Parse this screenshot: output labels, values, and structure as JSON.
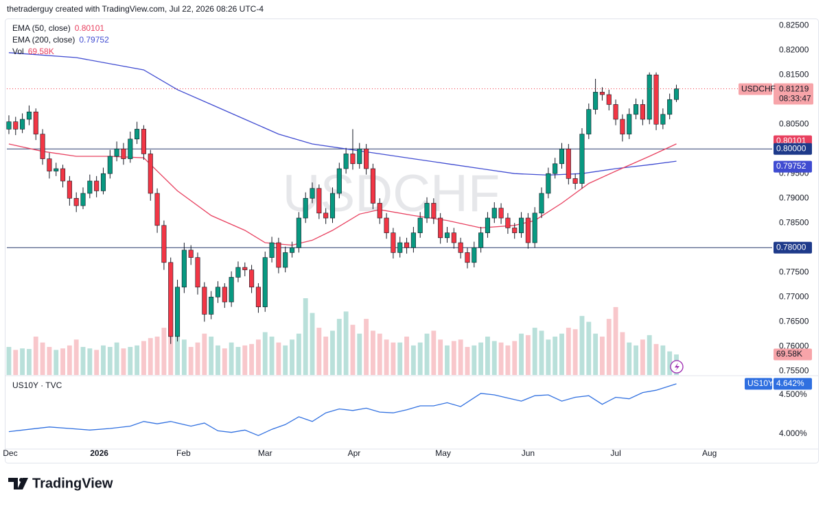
{
  "header": "thetraderguy created with TradingView.com, Jul 22, 2026 08:26 UTC-4",
  "footer": "TradingView",
  "chart_data": {
    "type": "candlestick",
    "symbol": "USDCHF",
    "countdown": "08:33:47",
    "up_color": "#089981",
    "down_color": "#f23645",
    "volume_up_color": "#b9e0da",
    "volume_down_color": "#f8c7cb",
    "xlim": [
      -0.3,
      113.2
    ],
    "ylim": [
      0.7542,
      0.826
    ],
    "xticks": [
      {
        "value": 0.2,
        "label": "Dec"
      },
      {
        "value": 13.4,
        "label": "2026"
      },
      {
        "value": 25.9,
        "label": "Feb"
      },
      {
        "value": 38,
        "label": "Mar"
      },
      {
        "value": 51.2,
        "label": "Apr"
      },
      {
        "value": 64.4,
        "label": "May"
      },
      {
        "value": 77,
        "label": "Jun"
      },
      {
        "value": 90,
        "label": "Jul"
      },
      {
        "value": 103.9,
        "label": "Aug"
      }
    ],
    "yticks": [
      {
        "value": 0.825,
        "label": "0.82500"
      },
      {
        "value": 0.82,
        "label": "0.82000"
      },
      {
        "value": 0.815,
        "label": "0.81500"
      },
      {
        "value": 0.81,
        "label": "0.81000"
      },
      {
        "value": 0.805,
        "label": "0.80500"
      },
      {
        "value": 0.8,
        "label": "0.80000"
      },
      {
        "value": 0.795,
        "label": "0.79500"
      },
      {
        "value": 0.79,
        "label": "0.79000"
      },
      {
        "value": 0.785,
        "label": "0.78500"
      },
      {
        "value": 0.78,
        "label": "0.78000"
      },
      {
        "value": 0.775,
        "label": "0.77500"
      },
      {
        "value": 0.77,
        "label": "0.77000"
      },
      {
        "value": 0.765,
        "label": "0.76500"
      },
      {
        "value": 0.76,
        "label": "0.76000"
      },
      {
        "value": 0.755,
        "label": "0.75500"
      }
    ],
    "hlines": [
      {
        "value": 0.8,
        "label": "0.80000"
      },
      {
        "value": 0.78,
        "label": "0.78000"
      }
    ],
    "candles": [
      [
        0.804,
        0.8068,
        0.803,
        0.8055
      ],
      [
        0.8055,
        0.8065,
        0.8028,
        0.804
      ],
      [
        0.804,
        0.8072,
        0.8032,
        0.806
      ],
      [
        0.806,
        0.8088,
        0.8048,
        0.8075
      ],
      [
        0.8075,
        0.8082,
        0.8018,
        0.803
      ],
      [
        0.803,
        0.804,
        0.7968,
        0.798
      ],
      [
        0.798,
        0.7992,
        0.794,
        0.7955
      ],
      [
        0.7955,
        0.7972,
        0.7945,
        0.796
      ],
      [
        0.796,
        0.7968,
        0.7922,
        0.7935
      ],
      [
        0.7935,
        0.7945,
        0.7885,
        0.79
      ],
      [
        0.79,
        0.7912,
        0.7872,
        0.7885
      ],
      [
        0.7885,
        0.7922,
        0.7878,
        0.791
      ],
      [
        0.791,
        0.7948,
        0.79,
        0.7935
      ],
      [
        0.7935,
        0.7945,
        0.7902,
        0.7915
      ],
      [
        0.7915,
        0.7962,
        0.7908,
        0.795
      ],
      [
        0.795,
        0.7998,
        0.794,
        0.7985
      ],
      [
        0.7985,
        0.8015,
        0.7975,
        0.8
      ],
      [
        0.8,
        0.8012,
        0.7968,
        0.798
      ],
      [
        0.798,
        0.8035,
        0.7972,
        0.802
      ],
      [
        0.802,
        0.8055,
        0.801,
        0.804
      ],
      [
        0.804,
        0.8048,
        0.7978,
        0.799
      ],
      [
        0.799,
        0.7998,
        0.7895,
        0.791
      ],
      [
        0.791,
        0.792,
        0.783,
        0.7845
      ],
      [
        0.7845,
        0.7855,
        0.7755,
        0.777
      ],
      [
        0.777,
        0.778,
        0.7605,
        0.762
      ],
      [
        0.762,
        0.7735,
        0.761,
        0.772
      ],
      [
        0.772,
        0.781,
        0.7708,
        0.7795
      ],
      [
        0.7795,
        0.7805,
        0.7765,
        0.778
      ],
      [
        0.778,
        0.779,
        0.7705,
        0.772
      ],
      [
        0.772,
        0.773,
        0.765,
        0.7665
      ],
      [
        0.7665,
        0.7712,
        0.7655,
        0.77
      ],
      [
        0.77,
        0.7732,
        0.7688,
        0.772
      ],
      [
        0.772,
        0.7728,
        0.7678,
        0.769
      ],
      [
        0.769,
        0.7752,
        0.768,
        0.774
      ],
      [
        0.774,
        0.7772,
        0.773,
        0.776
      ],
      [
        0.776,
        0.777,
        0.7742,
        0.7755
      ],
      [
        0.7755,
        0.7765,
        0.7708,
        0.772
      ],
      [
        0.772,
        0.7728,
        0.7668,
        0.768
      ],
      [
        0.768,
        0.7792,
        0.767,
        0.778
      ],
      [
        0.778,
        0.7822,
        0.777,
        0.781
      ],
      [
        0.781,
        0.782,
        0.7748,
        0.776
      ],
      [
        0.776,
        0.7802,
        0.775,
        0.779
      ],
      [
        0.779,
        0.7812,
        0.778,
        0.78
      ],
      [
        0.78,
        0.7872,
        0.779,
        0.786
      ],
      [
        0.786,
        0.7912,
        0.785,
        0.79
      ],
      [
        0.79,
        0.7932,
        0.789,
        0.792
      ],
      [
        0.792,
        0.7928,
        0.7858,
        0.787
      ],
      [
        0.787,
        0.788,
        0.7848,
        0.786
      ],
      [
        0.786,
        0.7922,
        0.785,
        0.791
      ],
      [
        0.791,
        0.7972,
        0.79,
        0.796
      ],
      [
        0.796,
        0.8002,
        0.795,
        0.799
      ],
      [
        0.799,
        0.804,
        0.7958,
        0.797
      ],
      [
        0.797,
        0.8012,
        0.796,
        0.8
      ],
      [
        0.8,
        0.801,
        0.7948,
        0.796
      ],
      [
        0.796,
        0.797,
        0.7878,
        0.789
      ],
      [
        0.789,
        0.79,
        0.7848,
        0.786
      ],
      [
        0.786,
        0.787,
        0.7818,
        0.783
      ],
      [
        0.783,
        0.784,
        0.7778,
        0.779
      ],
      [
        0.779,
        0.7822,
        0.778,
        0.781
      ],
      [
        0.781,
        0.782,
        0.7788,
        0.78
      ],
      [
        0.78,
        0.7842,
        0.779,
        0.783
      ],
      [
        0.783,
        0.7872,
        0.782,
        0.786
      ],
      [
        0.786,
        0.7902,
        0.785,
        0.789
      ],
      [
        0.789,
        0.79,
        0.7848,
        0.786
      ],
      [
        0.786,
        0.787,
        0.7808,
        0.782
      ],
      [
        0.782,
        0.7842,
        0.781,
        0.783
      ],
      [
        0.783,
        0.784,
        0.7798,
        0.781
      ],
      [
        0.781,
        0.782,
        0.7778,
        0.779
      ],
      [
        0.779,
        0.78,
        0.7758,
        0.777
      ],
      [
        0.777,
        0.7812,
        0.776,
        0.78
      ],
      [
        0.78,
        0.7842,
        0.779,
        0.783
      ],
      [
        0.783,
        0.7872,
        0.782,
        0.786
      ],
      [
        0.786,
        0.7892,
        0.785,
        0.788
      ],
      [
        0.788,
        0.789,
        0.7848,
        0.786
      ],
      [
        0.786,
        0.787,
        0.7828,
        0.784
      ],
      [
        0.784,
        0.785,
        0.7818,
        0.783
      ],
      [
        0.783,
        0.7872,
        0.782,
        0.786
      ],
      [
        0.786,
        0.787,
        0.7798,
        0.781
      ],
      [
        0.781,
        0.7882,
        0.78,
        0.787
      ],
      [
        0.787,
        0.7922,
        0.786,
        0.791
      ],
      [
        0.791,
        0.7962,
        0.79,
        0.795
      ],
      [
        0.795,
        0.7982,
        0.794,
        0.797
      ],
      [
        0.797,
        0.8012,
        0.796,
        0.8
      ],
      [
        0.8,
        0.801,
        0.7928,
        0.794
      ],
      [
        0.794,
        0.795,
        0.7918,
        0.793
      ],
      [
        0.793,
        0.8042,
        0.792,
        0.803
      ],
      [
        0.803,
        0.8092,
        0.802,
        0.808
      ],
      [
        0.808,
        0.8142,
        0.807,
        0.8115
      ],
      [
        0.8115,
        0.8125,
        0.8098,
        0.811
      ],
      [
        0.811,
        0.812,
        0.8078,
        0.809
      ],
      [
        0.809,
        0.81,
        0.8048,
        0.806
      ],
      [
        0.806,
        0.807,
        0.8015,
        0.803
      ],
      [
        0.803,
        0.8082,
        0.802,
        0.807
      ],
      [
        0.807,
        0.8102,
        0.806,
        0.809
      ],
      [
        0.809,
        0.81,
        0.8048,
        0.806
      ],
      [
        0.806,
        0.8155,
        0.805,
        0.815
      ],
      [
        0.815,
        0.8155,
        0.8038,
        0.805
      ],
      [
        0.805,
        0.8082,
        0.804,
        0.807
      ],
      [
        0.807,
        0.8112,
        0.806,
        0.81
      ],
      [
        0.81,
        0.813,
        0.8095,
        0.81219
      ]
    ],
    "volume": {
      "name": "Vol",
      "ylim": [
        0,
        1200
      ],
      "last_value_label": "69.58K",
      "values": [
        95,
        85,
        90,
        88,
        130,
        110,
        95,
        85,
        90,
        100,
        120,
        95,
        90,
        85,
        100,
        95,
        110,
        90,
        95,
        100,
        115,
        125,
        130,
        160,
        175,
        140,
        120,
        95,
        110,
        140,
        130,
        100,
        90,
        110,
        95,
        100,
        105,
        120,
        145,
        130,
        110,
        100,
        120,
        140,
        260,
        210,
        160,
        130,
        150,
        190,
        215,
        170,
        140,
        190,
        150,
        140,
        120,
        110,
        110,
        130,
        100,
        110,
        140,
        150,
        120,
        100,
        115,
        120,
        95,
        100,
        110,
        130,
        115,
        110,
        100,
        115,
        140,
        135,
        160,
        150,
        120,
        130,
        140,
        160,
        155,
        200,
        180,
        140,
        130,
        190,
        230,
        145,
        110,
        100,
        120,
        135,
        105,
        100,
        80,
        69.58
      ]
    },
    "ema50": {
      "name": "EMA (50, close)",
      "color": "#e8405f",
      "x": [
        0,
        5,
        10,
        15,
        20,
        25,
        30,
        35,
        38,
        42,
        45,
        48,
        52,
        55,
        60,
        65,
        70,
        75,
        78,
        82,
        86,
        90,
        95,
        99
      ],
      "values": [
        0.801,
        0.7995,
        0.7985,
        0.7985,
        0.7982,
        0.7915,
        0.7865,
        0.7835,
        0.781,
        0.7805,
        0.7815,
        0.7835,
        0.7868,
        0.7877,
        0.7865,
        0.7855,
        0.784,
        0.7845,
        0.7855,
        0.789,
        0.793,
        0.7955,
        0.7985,
        0.80101
      ]
    },
    "ema200": {
      "name": "EMA (200, close)",
      "color": "#3f4bd1",
      "x": [
        0,
        10,
        20,
        25,
        30,
        35,
        40,
        45,
        50,
        55,
        60,
        65,
        70,
        75,
        80,
        85,
        90,
        95,
        99
      ],
      "values": [
        0.8195,
        0.8185,
        0.816,
        0.812,
        0.809,
        0.806,
        0.803,
        0.801,
        0.8,
        0.799,
        0.798,
        0.797,
        0.796,
        0.795,
        0.7947,
        0.795,
        0.796,
        0.7968,
        0.79752
      ]
    },
    "us10y": {
      "name": "US10Y · TVC",
      "symbol": "US10Y",
      "color": "#2f6fe0",
      "ylim": [
        3.807,
        4.746
      ],
      "last_value_label": "4.642%",
      "yticks": [
        {
          "value": 4.5,
          "label": "4.500%"
        },
        {
          "value": 4.0,
          "label": "4.000%"
        }
      ],
      "x": [
        0,
        3,
        6,
        9,
        12,
        15,
        18,
        20,
        22,
        24,
        27,
        29,
        31,
        33,
        35,
        37,
        39,
        41,
        43,
        45,
        47,
        49,
        51,
        53,
        55,
        57,
        59,
        61,
        63,
        65,
        67,
        70,
        72,
        74,
        76,
        78,
        80,
        82,
        84,
        86,
        88,
        90,
        92,
        94,
        96,
        99
      ],
      "values": [
        4.03,
        4.06,
        4.09,
        4.07,
        4.05,
        4.07,
        4.1,
        4.16,
        4.13,
        4.16,
        4.1,
        4.14,
        4.04,
        4.02,
        4.05,
        3.98,
        4.06,
        4.12,
        4.22,
        4.16,
        4.27,
        4.32,
        4.3,
        4.33,
        4.28,
        4.27,
        4.31,
        4.36,
        4.36,
        4.4,
        4.35,
        4.52,
        4.5,
        4.46,
        4.42,
        4.49,
        4.5,
        4.42,
        4.47,
        4.49,
        4.38,
        4.47,
        4.45,
        4.53,
        4.56,
        4.642
      ]
    }
  }
}
